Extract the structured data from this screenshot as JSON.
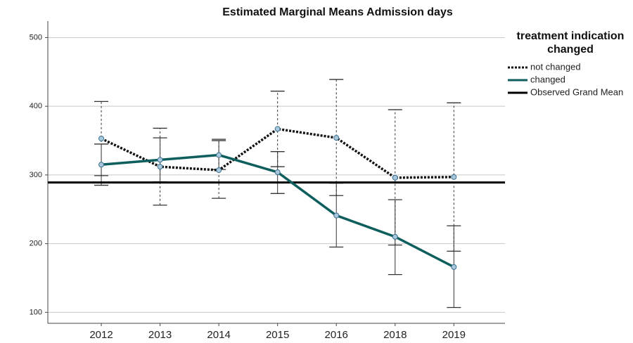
{
  "chart_data": {
    "type": "line",
    "title": "Estimated Marginal Means Admission days",
    "legend_title": "treatment indication changed",
    "categories": [
      "2012",
      "2013",
      "2014",
      "2015",
      "2016",
      "2018",
      "2019"
    ],
    "series": [
      {
        "name": "not changed",
        "color": "#111111",
        "dash": true,
        "values": [
          353,
          312,
          307,
          367,
          354,
          296,
          297
        ],
        "lower": [
          299,
          256,
          266,
          312,
          270,
          198,
          189
        ],
        "upper": [
          407,
          368,
          352,
          422,
          439,
          395,
          405
        ]
      },
      {
        "name": "changed",
        "color": "#0e5e5e",
        "dash": false,
        "values": [
          315,
          322,
          329,
          304,
          241,
          210,
          166
        ],
        "lower": [
          285,
          290,
          308,
          273,
          195,
          155,
          107
        ],
        "upper": [
          345,
          354,
          350,
          334,
          288,
          264,
          226
        ]
      }
    ],
    "reference": {
      "name": "Observed Grand Mean",
      "value": 289,
      "color": "#000000"
    },
    "ylim": [
      84,
      524
    ],
    "yticks": [
      100,
      200,
      300,
      400,
      500
    ],
    "grid": true,
    "legend": "right"
  }
}
